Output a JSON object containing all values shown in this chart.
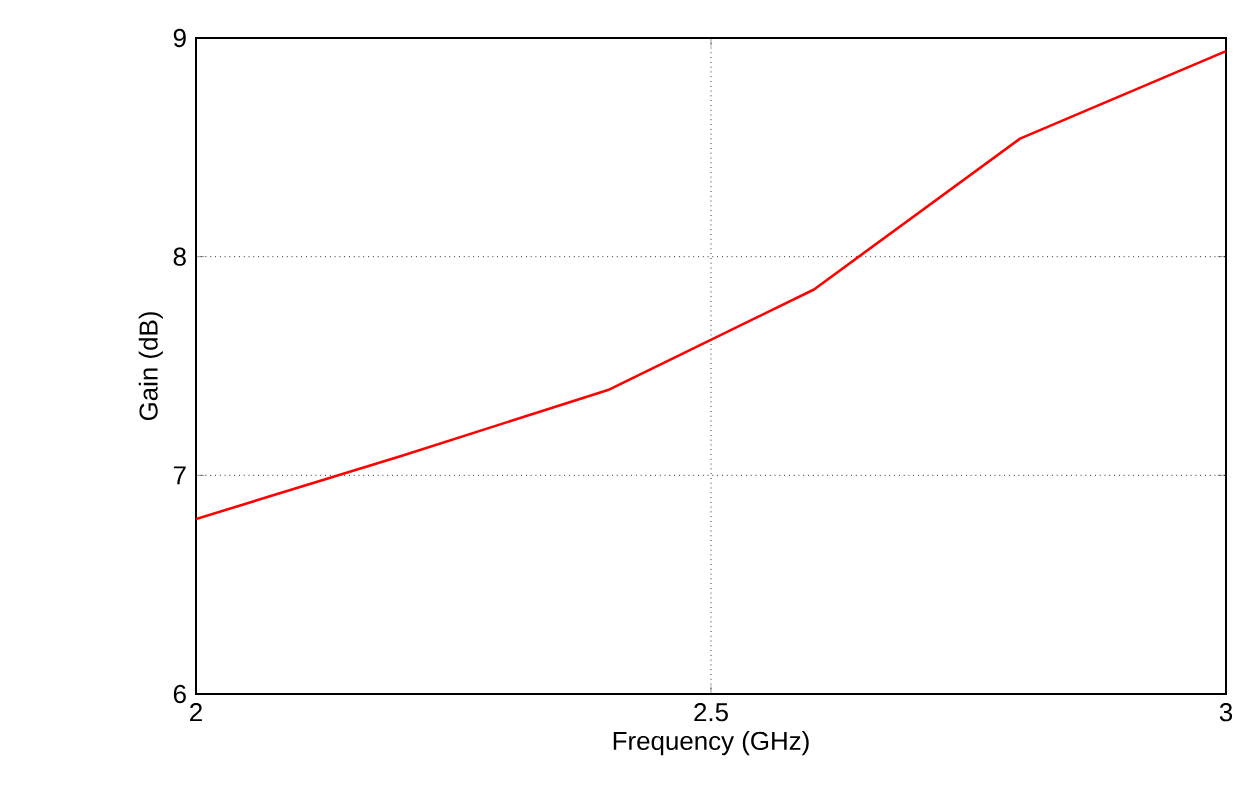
{
  "chart_data": {
    "type": "line",
    "xlabel": "Frequency (GHz)",
    "ylabel": "Gain (dB)",
    "x": [
      2,
      2.2,
      2.4,
      2.6,
      2.8,
      3
    ],
    "series": [
      {
        "color": "#ff0000",
        "values": [
          6.8,
          7.09,
          7.39,
          7.85,
          8.54,
          8.94
        ]
      }
    ],
    "xlim": [
      2,
      3
    ],
    "ylim": [
      6,
      9
    ],
    "xticks": [
      2,
      2.5,
      3
    ],
    "yticks": [
      6,
      7,
      8,
      9
    ],
    "grid": true,
    "marker": "none",
    "line_style": "solid"
  }
}
